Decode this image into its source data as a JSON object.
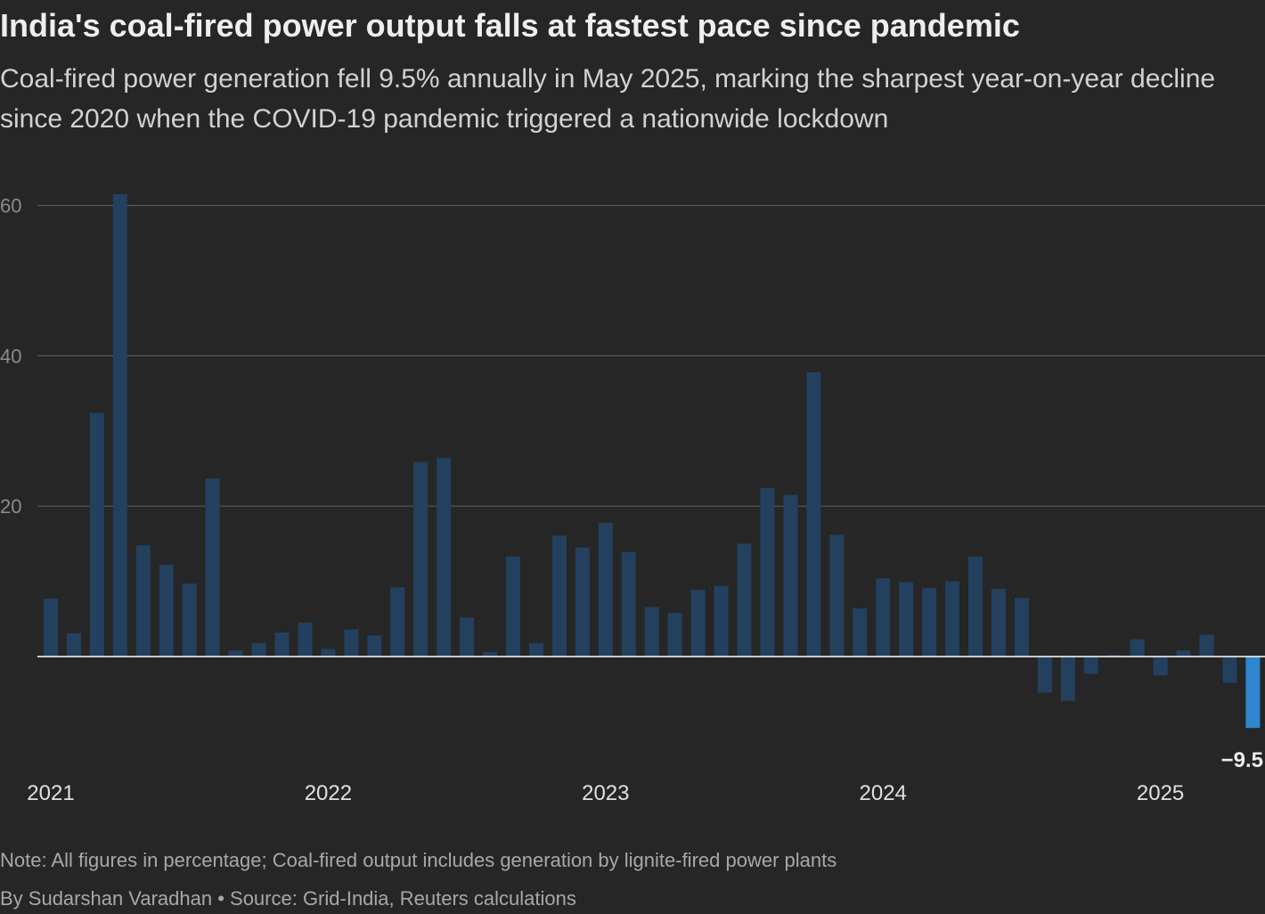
{
  "title": "India's coal-fired power output falls at fastest pace since pandemic",
  "subtitle": "Coal-fired power generation fell 9.5% annually in May 2025, marking the sharpest year-on-year decline since 2020 when the COVID-19 pandemic triggered a nationwide lockdown",
  "note": "Note: All figures in percentage; Coal-fired output includes generation by lignite-fired power plants",
  "credit": "By Sudarshan Varadhan • Source: Grid-India, Reuters calculations",
  "colors": {
    "background": "#262626",
    "bar": "#23405e",
    "highlight": "#2e86cf",
    "gridline": "#5a5a5a",
    "zero_line": "#ffffff",
    "tick_label": "#8c8c8c",
    "year_label": "#e0e0e0"
  },
  "chart_data": {
    "type": "bar",
    "title": "India's coal-fired power output falls at fastest pace since pandemic",
    "xlabel": "",
    "ylabel": "",
    "ylim": [
      -12,
      62
    ],
    "yticks": [
      20,
      40,
      60
    ],
    "grid": true,
    "legend": "none",
    "x_tick_labels": [
      {
        "label": "2021",
        "category": "2021-01"
      },
      {
        "label": "2022",
        "category": "2022-01"
      },
      {
        "label": "2023",
        "category": "2023-01"
      },
      {
        "label": "2024",
        "category": "2024-01"
      },
      {
        "label": "2025",
        "category": "2025-01"
      }
    ],
    "categories": [
      "2021-01",
      "2021-02",
      "2021-03",
      "2021-04",
      "2021-05",
      "2021-06",
      "2021-07",
      "2021-08",
      "2021-09",
      "2021-10",
      "2021-11",
      "2021-12",
      "2022-01",
      "2022-02",
      "2022-03",
      "2022-04",
      "2022-05",
      "2022-06",
      "2022-07",
      "2022-08",
      "2022-09",
      "2022-10",
      "2022-11",
      "2022-12",
      "2023-01",
      "2023-02",
      "2023-03",
      "2023-04",
      "2023-05",
      "2023-06",
      "2023-07",
      "2023-08",
      "2023-09",
      "2023-10",
      "2023-11",
      "2023-12",
      "2024-01",
      "2024-02",
      "2024-03",
      "2024-04",
      "2024-05",
      "2024-06",
      "2024-07",
      "2024-08",
      "2024-09",
      "2024-10",
      "2024-11",
      "2024-12",
      "2025-01",
      "2025-02",
      "2025-03",
      "2025-04",
      "2025-05"
    ],
    "values": [
      7.7,
      3.1,
      32.4,
      61.5,
      14.8,
      12.2,
      9.7,
      23.7,
      0.8,
      1.8,
      3.2,
      4.5,
      1.0,
      3.6,
      2.8,
      9.2,
      25.9,
      26.4,
      5.2,
      0.6,
      13.3,
      1.8,
      16.1,
      14.5,
      17.8,
      13.9,
      6.6,
      5.8,
      8.9,
      9.4,
      15.0,
      22.4,
      21.5,
      37.8,
      16.2,
      6.4,
      10.4,
      9.9,
      9.1,
      10.0,
      13.3,
      9.0,
      7.8,
      -4.8,
      -5.9,
      -2.3,
      0.2,
      2.3,
      -2.5,
      0.8,
      2.9,
      -3.5,
      -9.5
    ],
    "highlight_index": 52,
    "annotations": [
      {
        "text": "−9.5",
        "category": "2025-05"
      }
    ]
  }
}
